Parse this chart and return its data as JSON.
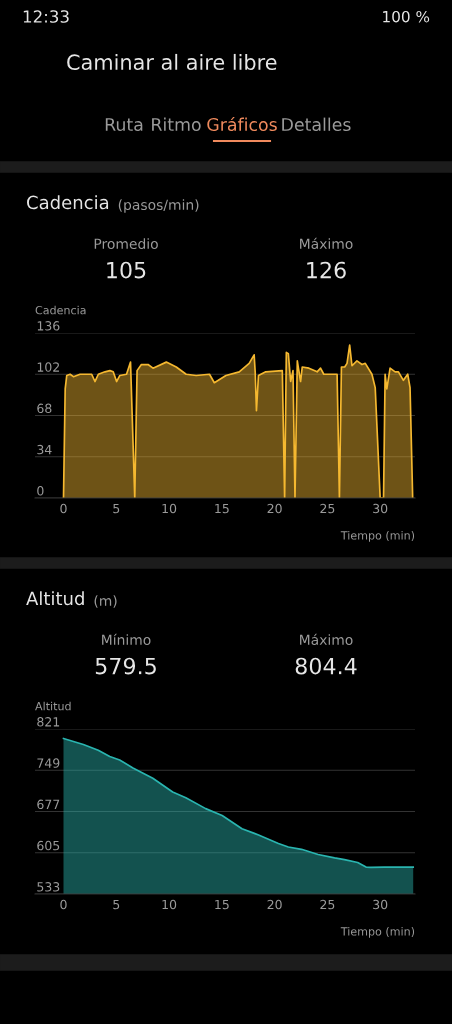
{
  "chart_data": [
    {
      "type": "other",
      "annotations": [
        "12:33",
        "100 %",
        "Caminar al aire libre",
        "Ruta",
        "Ritmo",
        "Gráficos",
        "Detalles"
      ]
    },
    {
      "type": "area",
      "title": "Cadencia",
      "subtitle": "(pasos/min)",
      "annotations": [
        "Promedio",
        "105",
        "Máximo",
        "126"
      ],
      "ylabel": "Cadencia",
      "xlabel": "Tiempo (min)",
      "xlim": [
        -2.7,
        33.3
      ],
      "ylim": [
        0,
        136
      ],
      "xticks": [
        0,
        5,
        10,
        15,
        20,
        25,
        30
      ],
      "yticks": [
        0,
        34,
        68,
        102,
        136
      ],
      "grid": "y",
      "x": [
        0,
        0.16,
        0.31,
        0.63,
        0.94,
        1.57,
        2.67,
        2.98,
        3.3,
        3.93,
        4.4,
        4.71,
        5.03,
        5.34,
        5.97,
        6.35,
        6.75,
        6.97,
        7.38,
        8.01,
        8.48,
        9.74,
        10.68,
        11.62,
        12.57,
        13.83,
        14.29,
        15.39,
        16.65,
        17.59,
        18.06,
        18.16,
        18.28,
        18.47,
        19.16,
        20.73,
        20.95,
        21.11,
        21.3,
        21.52,
        21.74,
        21.93,
        22.15,
        22.46,
        22.62,
        23.25,
        24.03,
        24.35,
        24.66,
        25.92,
        26.14,
        26.33,
        26.64,
        26.86,
        27.11,
        27.33,
        27.8,
        28.28,
        28.59,
        29.22,
        29.53,
        30.0,
        30.32,
        30.47,
        30.63,
        30.94,
        31.42,
        31.73,
        32.2,
        32.61,
        32.83,
        33.08
      ],
      "series": [
        {
          "color": "#f5b830",
          "values": [
            0,
            90,
            101,
            102,
            100,
            102,
            102,
            96,
            102,
            104,
            105,
            104,
            96,
            101,
            102,
            112,
            0,
            105,
            110,
            110,
            107,
            112,
            108,
            102,
            101,
            102,
            95,
            101,
            104,
            111,
            118,
            104,
            72,
            101,
            104,
            105,
            0,
            120,
            119,
            96,
            105,
            0,
            113,
            96,
            108,
            107,
            104,
            107,
            102,
            102,
            0,
            108,
            108,
            111,
            126,
            109,
            113,
            110,
            111,
            102,
            91,
            0,
            0,
            102,
            90,
            107,
            104,
            104,
            97,
            102,
            91,
            0
          ]
        }
      ]
    },
    {
      "type": "area",
      "title": "Altitud",
      "subtitle": "(m)",
      "annotations": [
        "Mínimo",
        "579.5",
        "Máximo",
        "804.4"
      ],
      "ylabel": "Altitud",
      "xlabel": "Tiempo (min)",
      "xlim": [
        -2.7,
        33.3
      ],
      "ylim": [
        533,
        821
      ],
      "xticks": [
        0,
        5,
        10,
        15,
        20,
        25,
        30
      ],
      "yticks": [
        533,
        605,
        677,
        749,
        821
      ],
      "grid": "y",
      "x": [
        0,
        1.88,
        3.29,
        4.38,
        5.32,
        6.58,
        8.46,
        10.34,
        11.59,
        13.47,
        15.03,
        16.91,
        18.48,
        20.36,
        21.3,
        22.55,
        24.12,
        25.68,
        26.62,
        27.87,
        28.66,
        29.13,
        30.38,
        33.13
      ],
      "series": [
        {
          "color": "#2ab5b0",
          "values": [
            804.4,
            794,
            784,
            773,
            767,
            753,
            735,
            711,
            701,
            682,
            670,
            647,
            636,
            621,
            615,
            611,
            602,
            596,
            593,
            588,
            580,
            579.5,
            580,
            580
          ]
        }
      ]
    }
  ]
}
